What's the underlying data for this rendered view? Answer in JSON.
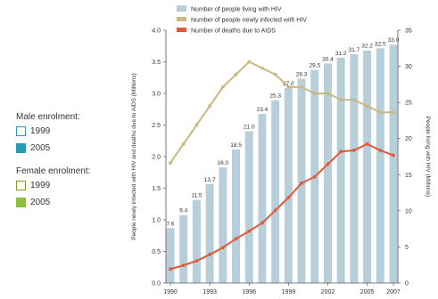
{
  "side_legend": {
    "male_heading": "Male enrolment:",
    "male_items": [
      {
        "label": "1999",
        "style": "outline",
        "color": "#2a9bb4"
      },
      {
        "label": "2005",
        "style": "filled",
        "color": "#2a9bb4"
      }
    ],
    "female_heading": "Female enrolment:",
    "female_items": [
      {
        "label": "1999",
        "style": "outline",
        "color": "#7a9a2a"
      },
      {
        "label": "2005",
        "style": "filled",
        "color": "#8cbf3f"
      }
    ]
  },
  "chart_data": {
    "type": "bar",
    "x": [
      1990,
      1991,
      1992,
      1993,
      1994,
      1995,
      1996,
      1997,
      1998,
      1999,
      2000,
      2001,
      2002,
      2003,
      2004,
      2005,
      2006,
      2007
    ],
    "x_tick_labels": [
      "1990",
      "1993",
      "1996",
      "1999",
      "2002",
      "2005",
      "2007"
    ],
    "x_tick_values": [
      1990,
      1993,
      1996,
      1999,
      2002,
      2005,
      2007
    ],
    "bars": {
      "name": "Number of people living with HIV",
      "axis": "right",
      "color": "#b7cedb",
      "values": [
        7.6,
        9.4,
        11.5,
        13.7,
        16.0,
        18.5,
        21.0,
        23.4,
        25.3,
        27.0,
        28.3,
        29.5,
        30.4,
        31.2,
        31.7,
        32.2,
        32.5,
        33.0
      ],
      "data_labels": [
        "7.6",
        "9.4",
        "11.5",
        "13.7",
        "16.0",
        "18.5",
        "21.0",
        "23.4",
        "25.3",
        "27.0",
        "28.3",
        "29.5",
        "30.4",
        "31.2",
        "31.7",
        "32.2",
        "32.5",
        "33.0"
      ]
    },
    "series": [
      {
        "name": "Number of people newly infected with HIV",
        "axis": "left",
        "color": "#c8b882",
        "values": [
          1.9,
          2.2,
          2.5,
          2.8,
          3.1,
          3.3,
          3.5,
          3.4,
          3.3,
          3.1,
          3.1,
          3.0,
          3.0,
          2.9,
          2.9,
          2.8,
          2.7,
          2.7
        ]
      },
      {
        "name": "Number of deaths due to AIDS",
        "axis": "left",
        "color": "#e05a3a",
        "values": [
          0.22,
          0.28,
          0.35,
          0.45,
          0.56,
          0.7,
          0.82,
          0.95,
          1.15,
          1.35,
          1.58,
          1.68,
          1.88,
          2.08,
          2.1,
          2.2,
          2.1,
          2.02
        ]
      }
    ],
    "ylabel_left": "People newly infected with HIV and deaths due to AIDS (Millions)",
    "ylabel_right": "People living with HIV (Millions)",
    "ylim_left": [
      0,
      4
    ],
    "ylim_right": [
      0,
      35
    ],
    "y_ticks_left": [
      "0.0",
      "0.5",
      "1.0",
      "1.5",
      "2.0",
      "2.5",
      "3.0",
      "3.5",
      "4.0"
    ],
    "y_ticks_right": [
      "0",
      "5",
      "10",
      "15",
      "20",
      "25",
      "30",
      "35"
    ],
    "grid": false,
    "legend_placement": "top"
  }
}
